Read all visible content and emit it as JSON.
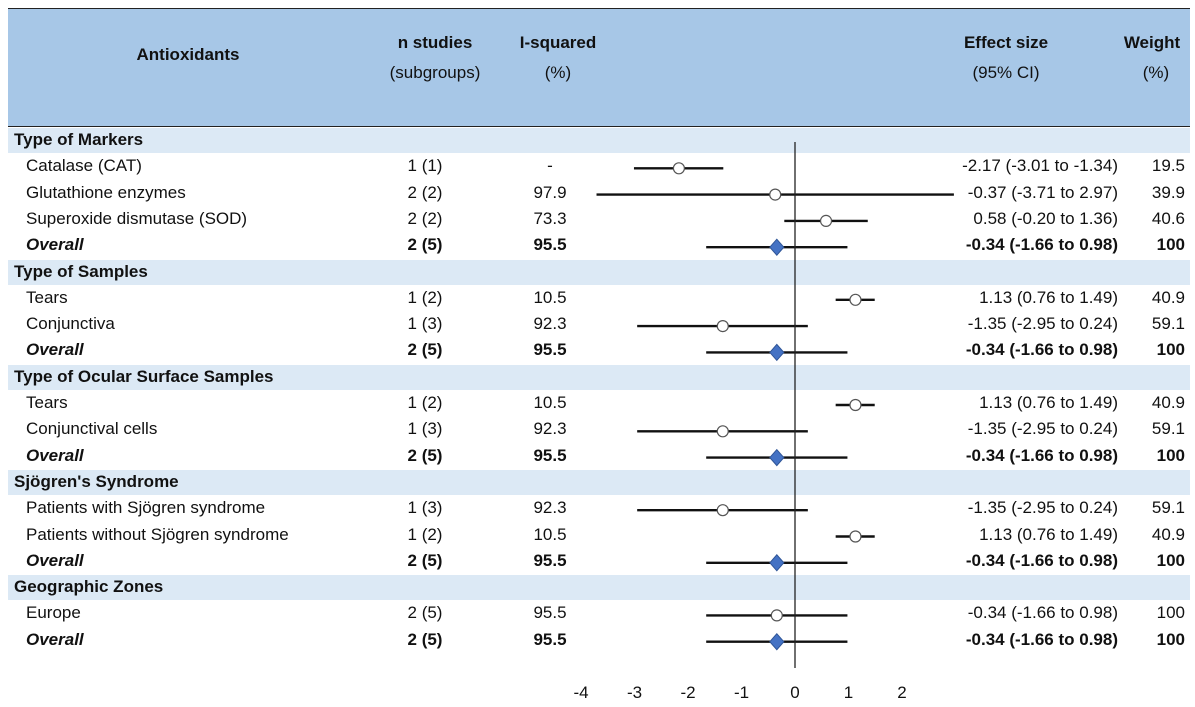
{
  "header": {
    "antioxidants": "Antioxidants",
    "n_studies_1": "n studies",
    "n_studies_2": "(subgroups)",
    "isq_1": "I-squared",
    "isq_2": "(%)",
    "es_1": "Effect size",
    "es_2": "(95% CI)",
    "weight_1": "Weight",
    "weight_2": "(%)"
  },
  "colors": {
    "header_bg": "#a7c7e7",
    "section_bg": "#dce9f5",
    "diamond": "#4472c4",
    "line": "#111111"
  },
  "chart_data": {
    "type": "forest",
    "xlim": [
      -4,
      2
    ],
    "x_ticks": [
      "-4",
      "-3",
      "-2",
      "-1",
      "0",
      "1",
      "2"
    ],
    "sections": [
      {
        "title": "Type of Markers",
        "rows": [
          {
            "label": "Catalase (CAT)",
            "n": "1 (1)",
            "isq": "-",
            "es_text": "-2.17 (-3.01 to -1.34)",
            "weight": "19.5",
            "est": -2.17,
            "lo": -3.01,
            "hi": -1.34,
            "overall": false
          },
          {
            "label": "Glutathione enzymes",
            "n": "2 (2)",
            "isq": "97.9",
            "es_text": "-0.37 (-3.71 to 2.97)",
            "weight": "39.9",
            "est": -0.37,
            "lo": -3.71,
            "hi": 2.97,
            "overall": false
          },
          {
            "label": "Superoxide dismutase (SOD)",
            "n": "2 (2)",
            "isq": "73.3",
            "es_text": "0.58 (-0.20 to 1.36)",
            "weight": "40.6",
            "est": 0.58,
            "lo": -0.2,
            "hi": 1.36,
            "overall": false
          },
          {
            "label": "Overall",
            "n": "2 (5)",
            "isq": "95.5",
            "es_text": "-0.34 (-1.66 to 0.98)",
            "weight": "100",
            "est": -0.34,
            "lo": -1.66,
            "hi": 0.98,
            "overall": true
          }
        ]
      },
      {
        "title": "Type of Samples",
        "rows": [
          {
            "label": "Tears",
            "n": "1 (2)",
            "isq": "10.5",
            "es_text": "1.13 (0.76 to 1.49)",
            "weight": "40.9",
            "est": 1.13,
            "lo": 0.76,
            "hi": 1.49,
            "overall": false
          },
          {
            "label": "Conjunctiva",
            "n": "1 (3)",
            "isq": "92.3",
            "es_text": "-1.35 (-2.95 to 0.24)",
            "weight": "59.1",
            "est": -1.35,
            "lo": -2.95,
            "hi": 0.24,
            "overall": false
          },
          {
            "label": "Overall",
            "n": "2 (5)",
            "isq": "95.5",
            "es_text": "-0.34 (-1.66 to 0.98)",
            "weight": "100",
            "est": -0.34,
            "lo": -1.66,
            "hi": 0.98,
            "overall": true
          }
        ]
      },
      {
        "title": "Type of Ocular Surface Samples",
        "rows": [
          {
            "label": "Tears",
            "n": "1 (2)",
            "isq": "10.5",
            "es_text": "1.13 (0.76 to 1.49)",
            "weight": "40.9",
            "est": 1.13,
            "lo": 0.76,
            "hi": 1.49,
            "overall": false
          },
          {
            "label": "Conjunctival cells",
            "n": "1 (3)",
            "isq": "92.3",
            "es_text": "-1.35 (-2.95 to 0.24)",
            "weight": "59.1",
            "est": -1.35,
            "lo": -2.95,
            "hi": 0.24,
            "overall": false
          },
          {
            "label": "Overall",
            "n": "2 (5)",
            "isq": "95.5",
            "es_text": "-0.34 (-1.66 to 0.98)",
            "weight": "100",
            "est": -0.34,
            "lo": -1.66,
            "hi": 0.98,
            "overall": true
          }
        ]
      },
      {
        "title": "Sjögren's Syndrome",
        "rows": [
          {
            "label": "Patients with Sjögren syndrome",
            "n": "1 (3)",
            "isq": "92.3",
            "es_text": "-1.35 (-2.95 to 0.24)",
            "weight": "59.1",
            "est": -1.35,
            "lo": -2.95,
            "hi": 0.24,
            "overall": false
          },
          {
            "label": "Patients without Sjögren syndrome",
            "n": "1 (2)",
            "isq": "10.5",
            "es_text": "1.13 (0.76 to 1.49)",
            "weight": "40.9",
            "est": 1.13,
            "lo": 0.76,
            "hi": 1.49,
            "overall": false
          },
          {
            "label": "Overall",
            "n": "2 (5)",
            "isq": "95.5",
            "es_text": "-0.34 (-1.66 to 0.98)",
            "weight": "100",
            "est": -0.34,
            "lo": -1.66,
            "hi": 0.98,
            "overall": true
          }
        ]
      },
      {
        "title": "Geographic Zones",
        "rows": [
          {
            "label": "Europe",
            "n": "2 (5)",
            "isq": "95.5",
            "es_text": "-0.34 (-1.66 to 0.98)",
            "weight": "100",
            "est": -0.34,
            "lo": -1.66,
            "hi": 0.98,
            "overall": false
          },
          {
            "label": "Overall",
            "n": "2 (5)",
            "isq": "95.5",
            "es_text": "-0.34 (-1.66 to 0.98)",
            "weight": "100",
            "est": -0.34,
            "lo": -1.66,
            "hi": 0.98,
            "overall": true
          }
        ]
      }
    ]
  }
}
